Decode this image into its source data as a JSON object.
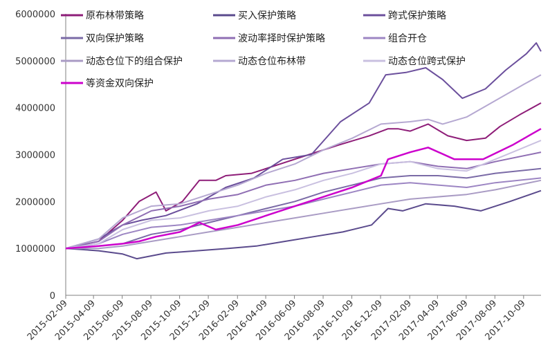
{
  "chart_data": {
    "type": "line",
    "title": "",
    "xlabel": "",
    "ylabel": "",
    "ylim": [
      0,
      6000000
    ],
    "yticks": [
      "0",
      "1000000",
      "2000000",
      "3000000",
      "4000000",
      "5000000",
      "6000000"
    ],
    "x_range": [
      "2015-02-09",
      "2017-11-15"
    ],
    "x_tick_labels": [
      "2015-02-09",
      "2015-04-09",
      "2015-06-09",
      "2015-08-09",
      "2015-10-09",
      "2015-12-09",
      "2016-02-09",
      "2016-04-09",
      "2016-06-09",
      "2016-08-09",
      "2016-10-09",
      "2016-12-09",
      "2017-02-09",
      "2017-04-09",
      "2017-06-09",
      "2017-08-09",
      "2017-10-09"
    ],
    "legend_position": "top",
    "series": [
      {
        "name": "原布林带策略",
        "color": "#8e1d78",
        "points": [
          [
            "2015-02-09",
            1000000
          ],
          [
            "2015-04-20",
            1150000
          ],
          [
            "2015-06-10",
            1600000
          ],
          [
            "2015-07-15",
            2000000
          ],
          [
            "2015-08-20",
            2200000
          ],
          [
            "2015-09-10",
            1800000
          ],
          [
            "2015-10-15",
            2000000
          ],
          [
            "2015-11-20",
            2450000
          ],
          [
            "2015-12-25",
            2450000
          ],
          [
            "2016-01-15",
            2550000
          ],
          [
            "2016-03-10",
            2600000
          ],
          [
            "2016-05-10",
            2800000
          ],
          [
            "2016-07-10",
            3000000
          ],
          [
            "2016-09-10",
            3200000
          ],
          [
            "2016-11-15",
            3400000
          ],
          [
            "2016-12-25",
            3550000
          ],
          [
            "2017-01-15",
            3550000
          ],
          [
            "2017-02-10",
            3500000
          ],
          [
            "2017-03-20",
            3650000
          ],
          [
            "2017-05-01",
            3400000
          ],
          [
            "2017-06-10",
            3300000
          ],
          [
            "2017-07-20",
            3350000
          ],
          [
            "2017-08-20",
            3600000
          ],
          [
            "2017-10-01",
            3850000
          ],
          [
            "2017-11-15",
            4100000
          ]
        ]
      },
      {
        "name": "买入保护策略",
        "color": "#5a4a8c",
        "points": [
          [
            "2015-02-09",
            1000000
          ],
          [
            "2015-04-20",
            950000
          ],
          [
            "2015-06-10",
            880000
          ],
          [
            "2015-07-10",
            780000
          ],
          [
            "2015-09-10",
            900000
          ],
          [
            "2015-11-15",
            950000
          ],
          [
            "2016-01-20",
            1000000
          ],
          [
            "2016-03-20",
            1050000
          ],
          [
            "2016-05-20",
            1150000
          ],
          [
            "2016-07-20",
            1250000
          ],
          [
            "2016-09-20",
            1350000
          ],
          [
            "2016-11-20",
            1500000
          ],
          [
            "2016-12-25",
            1850000
          ],
          [
            "2017-01-25",
            1800000
          ],
          [
            "2017-03-15",
            1950000
          ],
          [
            "2017-05-15",
            1900000
          ],
          [
            "2017-07-10",
            1800000
          ],
          [
            "2017-09-10",
            2000000
          ],
          [
            "2017-11-15",
            2230000
          ]
        ]
      },
      {
        "name": "跨式保护策略",
        "color": "#6b4f9c",
        "points": [
          [
            "2015-02-09",
            1000000
          ],
          [
            "2015-04-20",
            1200000
          ],
          [
            "2015-06-10",
            1500000
          ],
          [
            "2015-07-20",
            1600000
          ],
          [
            "2015-09-10",
            1700000
          ],
          [
            "2015-11-15",
            1950000
          ],
          [
            "2016-01-15",
            2300000
          ],
          [
            "2016-03-15",
            2500000
          ],
          [
            "2016-05-15",
            2900000
          ],
          [
            "2016-07-15",
            3000000
          ],
          [
            "2016-09-15",
            3700000
          ],
          [
            "2016-11-15",
            4100000
          ],
          [
            "2016-12-20",
            4700000
          ],
          [
            "2017-02-01",
            4750000
          ],
          [
            "2017-03-15",
            4850000
          ],
          [
            "2017-04-20",
            4600000
          ],
          [
            "2017-06-01",
            4200000
          ],
          [
            "2017-07-20",
            4400000
          ],
          [
            "2017-09-01",
            4800000
          ],
          [
            "2017-10-15",
            5150000
          ],
          [
            "2017-11-05",
            5380000
          ],
          [
            "2017-11-15",
            5200000
          ]
        ]
      },
      {
        "name": "双向保护策略",
        "color": "#7a6aa6",
        "points": [
          [
            "2015-02-09",
            1000000
          ],
          [
            "2015-04-20",
            1050000
          ],
          [
            "2015-06-10",
            1100000
          ],
          [
            "2015-08-10",
            1300000
          ],
          [
            "2015-10-10",
            1400000
          ],
          [
            "2015-12-10",
            1550000
          ],
          [
            "2016-02-10",
            1700000
          ],
          [
            "2016-04-10",
            1850000
          ],
          [
            "2016-06-10",
            2000000
          ],
          [
            "2016-08-10",
            2200000
          ],
          [
            "2016-10-10",
            2350000
          ],
          [
            "2016-12-10",
            2500000
          ],
          [
            "2017-02-10",
            2550000
          ],
          [
            "2017-04-10",
            2550000
          ],
          [
            "2017-06-10",
            2500000
          ],
          [
            "2017-08-10",
            2600000
          ],
          [
            "2017-11-15",
            2700000
          ]
        ]
      },
      {
        "name": "波动率择时保护策略",
        "color": "#8f6eb3",
        "points": [
          [
            "2015-02-09",
            1000000
          ],
          [
            "2015-04-20",
            1150000
          ],
          [
            "2015-06-10",
            1500000
          ],
          [
            "2015-08-10",
            1800000
          ],
          [
            "2015-10-10",
            1900000
          ],
          [
            "2015-12-10",
            2050000
          ],
          [
            "2016-02-10",
            2150000
          ],
          [
            "2016-04-10",
            2350000
          ],
          [
            "2016-06-10",
            2450000
          ],
          [
            "2016-08-10",
            2600000
          ],
          [
            "2016-10-10",
            2700000
          ],
          [
            "2016-12-10",
            2800000
          ],
          [
            "2017-02-10",
            2850000
          ],
          [
            "2017-04-10",
            2750000
          ],
          [
            "2017-06-10",
            2700000
          ],
          [
            "2017-08-10",
            2850000
          ],
          [
            "2017-11-15",
            3050000
          ]
        ]
      },
      {
        "name": "组合开仓",
        "color": "#9c85c3",
        "points": [
          [
            "2015-02-09",
            1000000
          ],
          [
            "2015-04-20",
            1100000
          ],
          [
            "2015-06-10",
            1300000
          ],
          [
            "2015-08-10",
            1450000
          ],
          [
            "2015-10-10",
            1500000
          ],
          [
            "2015-12-10",
            1600000
          ],
          [
            "2016-02-10",
            1700000
          ],
          [
            "2016-04-10",
            1800000
          ],
          [
            "2016-06-10",
            1900000
          ],
          [
            "2016-08-10",
            2050000
          ],
          [
            "2016-10-10",
            2200000
          ],
          [
            "2016-12-10",
            2350000
          ],
          [
            "2017-02-10",
            2400000
          ],
          [
            "2017-04-10",
            2350000
          ],
          [
            "2017-06-10",
            2300000
          ],
          [
            "2017-08-10",
            2400000
          ],
          [
            "2017-11-15",
            2500000
          ]
        ]
      },
      {
        "name": "动态仓位下的组合保护",
        "color": "#a99bc4",
        "points": [
          [
            "2015-02-09",
            1000000
          ],
          [
            "2015-04-20",
            1000000
          ],
          [
            "2015-06-10",
            1050000
          ],
          [
            "2015-08-10",
            1150000
          ],
          [
            "2015-10-10",
            1250000
          ],
          [
            "2015-12-10",
            1350000
          ],
          [
            "2016-02-10",
            1450000
          ],
          [
            "2016-04-10",
            1550000
          ],
          [
            "2016-06-10",
            1650000
          ],
          [
            "2016-08-10",
            1750000
          ],
          [
            "2016-10-10",
            1850000
          ],
          [
            "2016-12-10",
            1950000
          ],
          [
            "2017-02-10",
            2050000
          ],
          [
            "2017-04-10",
            2100000
          ],
          [
            "2017-06-10",
            2150000
          ],
          [
            "2017-08-10",
            2250000
          ],
          [
            "2017-11-15",
            2450000
          ]
        ]
      },
      {
        "name": "动态仓位布林带",
        "color": "#b5a8d1",
        "points": [
          [
            "2015-02-09",
            1000000
          ],
          [
            "2015-04-20",
            1200000
          ],
          [
            "2015-06-10",
            1650000
          ],
          [
            "2015-08-10",
            1900000
          ],
          [
            "2015-10-10",
            1950000
          ],
          [
            "2015-12-10",
            2150000
          ],
          [
            "2016-02-10",
            2350000
          ],
          [
            "2016-04-10",
            2600000
          ],
          [
            "2016-06-10",
            2800000
          ],
          [
            "2016-08-10",
            3100000
          ],
          [
            "2016-10-10",
            3350000
          ],
          [
            "2016-12-10",
            3650000
          ],
          [
            "2017-02-10",
            3700000
          ],
          [
            "2017-03-20",
            3750000
          ],
          [
            "2017-04-20",
            3650000
          ],
          [
            "2017-06-10",
            3800000
          ],
          [
            "2017-08-10",
            4150000
          ],
          [
            "2017-10-10",
            4500000
          ],
          [
            "2017-11-15",
            4700000
          ]
        ]
      },
      {
        "name": "动态仓位跨式保护",
        "color": "#c9c0e0",
        "points": [
          [
            "2015-02-09",
            1000000
          ],
          [
            "2015-04-20",
            1100000
          ],
          [
            "2015-06-10",
            1400000
          ],
          [
            "2015-08-10",
            1600000
          ],
          [
            "2015-10-10",
            1650000
          ],
          [
            "2015-12-10",
            1800000
          ],
          [
            "2016-02-10",
            1900000
          ],
          [
            "2016-04-10",
            2100000
          ],
          [
            "2016-06-10",
            2250000
          ],
          [
            "2016-08-10",
            2450000
          ],
          [
            "2016-10-10",
            2600000
          ],
          [
            "2016-12-10",
            2800000
          ],
          [
            "2017-02-10",
            2850000
          ],
          [
            "2017-04-10",
            2700000
          ],
          [
            "2017-06-10",
            2650000
          ],
          [
            "2017-08-10",
            2900000
          ],
          [
            "2017-11-15",
            3300000
          ]
        ]
      },
      {
        "name": "等资金双向保护",
        "color": "#cc00cc",
        "points": [
          [
            "2015-02-09",
            1000000
          ],
          [
            "2015-04-20",
            1050000
          ],
          [
            "2015-06-10",
            1100000
          ],
          [
            "2015-07-15",
            1150000
          ],
          [
            "2015-08-20",
            1250000
          ],
          [
            "2015-10-10",
            1350000
          ],
          [
            "2015-11-20",
            1550000
          ],
          [
            "2015-12-25",
            1400000
          ],
          [
            "2016-02-10",
            1500000
          ],
          [
            "2016-04-10",
            1700000
          ],
          [
            "2016-06-10",
            1900000
          ],
          [
            "2016-08-10",
            2100000
          ],
          [
            "2016-10-10",
            2300000
          ],
          [
            "2016-12-10",
            2550000
          ],
          [
            "2016-12-25",
            2900000
          ],
          [
            "2017-02-10",
            3050000
          ],
          [
            "2017-03-20",
            3150000
          ],
          [
            "2017-05-15",
            2900000
          ],
          [
            "2017-07-15",
            2900000
          ],
          [
            "2017-09-15",
            3200000
          ],
          [
            "2017-11-15",
            3550000
          ]
        ]
      }
    ]
  }
}
